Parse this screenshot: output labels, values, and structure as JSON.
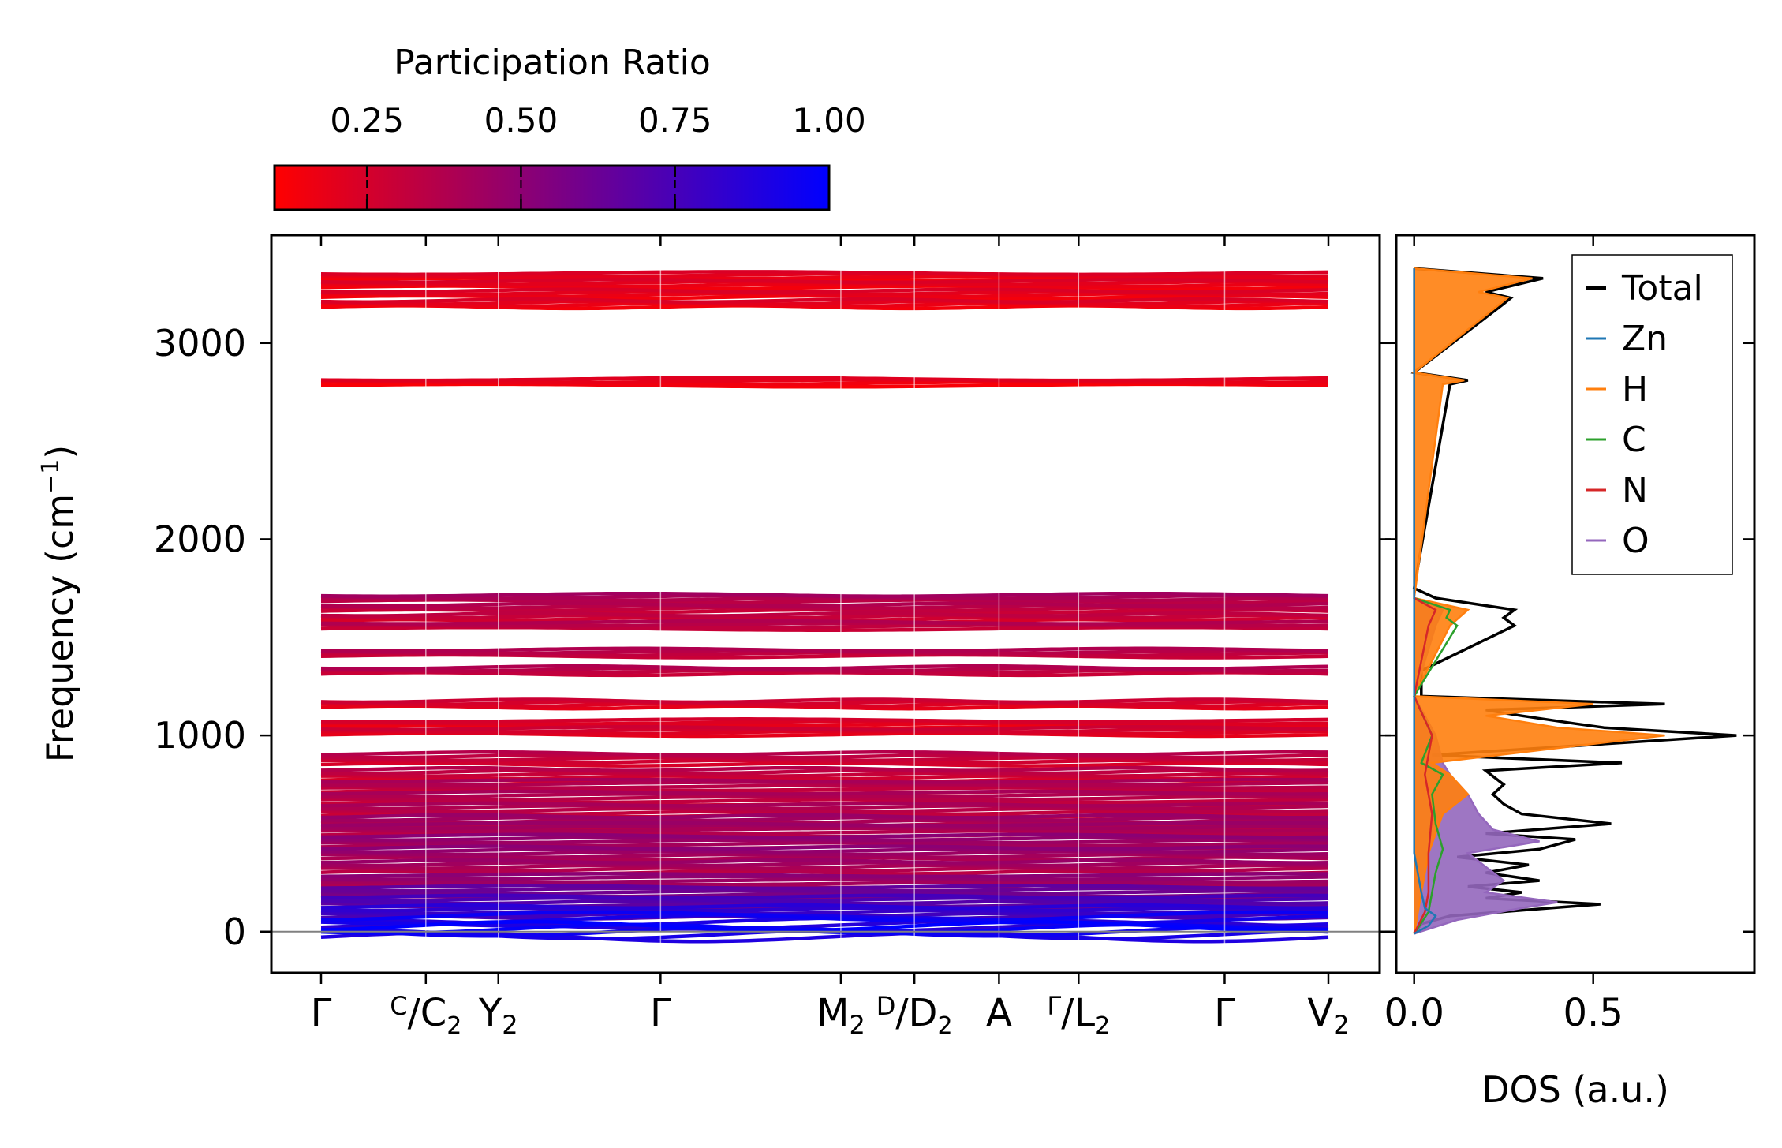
{
  "colorbar": {
    "label": "Participation Ratio",
    "range": [
      0.1,
      1.0
    ],
    "ticks": [
      "0.25",
      "0.50",
      "0.75",
      "1.00"
    ],
    "tick_values": [
      0.25,
      0.5,
      0.75,
      1.0
    ],
    "color_low": "#ff0000",
    "color_high": "#0000ff"
  },
  "chart_data": [
    {
      "type": "line",
      "name": "phonon-band-structure",
      "ylabel": "Frequency (cm",
      "ylabel_exp": "−1",
      "ylabel_end": ")",
      "ylim": [
        -210,
        3550
      ],
      "yticks": [
        "0",
        "1000",
        "2000",
        "3000"
      ],
      "ytick_values": [
        0,
        1000,
        2000,
        3000
      ],
      "xpath": [
        {
          "label": "Γ",
          "pos": 0.0
        },
        {
          "label": "C",
          "sub": "C",
          "sub2": "2",
          "split": true,
          "pos": 0.104
        },
        {
          "label": "Y",
          "sub": "2",
          "pos": 0.176
        },
        {
          "label": "Γ",
          "pos": 0.337
        },
        {
          "label": "M",
          "sub": "2",
          "pos": 0.516
        },
        {
          "label": "D",
          "sub": "D",
          "sub2": "2",
          "split": true,
          "pos": 0.589
        },
        {
          "label": "A",
          "pos": 0.673
        },
        {
          "label": "Γ",
          "sub": "L",
          "sub2": "2",
          "split": true,
          "pos": 0.752
        },
        {
          "label": "Γ",
          "pos": 0.897
        },
        {
          "label": "V",
          "sub": "2",
          "pos": 1.0
        }
      ],
      "band_groups": [
        {
          "center": 3340,
          "pr": 0.2
        },
        {
          "center": 3300,
          "pr": 0.2
        },
        {
          "center": 3250,
          "pr": 0.2
        },
        {
          "center": 3200,
          "pr": 0.2
        },
        {
          "center": 2800,
          "pr": 0.18
        },
        {
          "center": 1700,
          "pr": 0.4
        },
        {
          "center": 1650,
          "pr": 0.35
        },
        {
          "center": 1600,
          "pr": 0.3
        },
        {
          "center": 1560,
          "pr": 0.35
        },
        {
          "center": 1420,
          "pr": 0.35
        },
        {
          "center": 1330,
          "pr": 0.35
        },
        {
          "center": 1160,
          "pr": 0.25
        },
        {
          "center": 1060,
          "pr": 0.22
        },
        {
          "center": 1020,
          "pr": 0.25
        },
        {
          "center": 880,
          "pr": 0.3
        },
        {
          "center": 800,
          "pr": 0.3
        },
        {
          "center": 740,
          "pr": 0.35
        },
        {
          "center": 680,
          "pr": 0.35
        },
        {
          "center": 620,
          "pr": 0.35
        },
        {
          "center": 560,
          "pr": 0.4
        },
        {
          "center": 520,
          "pr": 0.4
        },
        {
          "center": 460,
          "pr": 0.45
        },
        {
          "center": 400,
          "pr": 0.45
        },
        {
          "center": 330,
          "pr": 0.4
        },
        {
          "center": 260,
          "pr": 0.45
        },
        {
          "center": 200,
          "pr": 0.6
        },
        {
          "center": 150,
          "pr": 0.7
        },
        {
          "center": 100,
          "pr": 0.8
        },
        {
          "center": 50,
          "pr": 0.9
        },
        {
          "center": 0,
          "pr": 0.95
        }
      ]
    },
    {
      "type": "line",
      "name": "phonon-dos",
      "xlabel": "DOS (a.u.)",
      "xlim": [
        -0.05,
        0.95
      ],
      "xticks": [
        "0.0",
        "0.5"
      ],
      "xtick_values": [
        0.0,
        0.5
      ],
      "legend_position": "top-right",
      "series": [
        {
          "name": "Total",
          "color": "#000000",
          "points": [
            [
              -10,
              0.0
            ],
            [
              40,
              0.02
            ],
            [
              80,
              0.1
            ],
            [
              120,
              0.38
            ],
            [
              140,
              0.52
            ],
            [
              170,
              0.2
            ],
            [
              200,
              0.3
            ],
            [
              230,
              0.15
            ],
            [
              260,
              0.35
            ],
            [
              300,
              0.2
            ],
            [
              340,
              0.32
            ],
            [
              380,
              0.12
            ],
            [
              420,
              0.35
            ],
            [
              470,
              0.45
            ],
            [
              500,
              0.2
            ],
            [
              550,
              0.55
            ],
            [
              600,
              0.3
            ],
            [
              650,
              0.25
            ],
            [
              700,
              0.22
            ],
            [
              750,
              0.25
            ],
            [
              820,
              0.2
            ],
            [
              860,
              0.58
            ],
            [
              900,
              0.05
            ],
            [
              1000,
              0.9
            ],
            [
              1040,
              0.53
            ],
            [
              1060,
              0.45
            ],
            [
              1100,
              0.3
            ],
            [
              1130,
              0.2
            ],
            [
              1160,
              0.7
            ],
            [
              1200,
              0.02
            ],
            [
              1330,
              0.02
            ],
            [
              1560,
              0.28
            ],
            [
              1600,
              0.25
            ],
            [
              1640,
              0.28
            ],
            [
              1700,
              0.06
            ],
            [
              1750,
              0.0
            ],
            [
              2790,
              0.1
            ],
            [
              2810,
              0.15
            ],
            [
              2850,
              0.0
            ],
            [
              3200,
              0.25
            ],
            [
              3230,
              0.27
            ],
            [
              3260,
              0.2
            ],
            [
              3330,
              0.36
            ],
            [
              3380,
              0.0
            ]
          ]
        },
        {
          "name": "Zn",
          "color": "#1f77b4",
          "points": [
            [
              -10,
              0.0
            ],
            [
              30,
              0.04
            ],
            [
              80,
              0.06
            ],
            [
              120,
              0.03
            ],
            [
              200,
              0.02
            ],
            [
              300,
              0.01
            ],
            [
              400,
              0.0
            ],
            [
              3380,
              0.0
            ]
          ]
        },
        {
          "name": "H",
          "color": "#ff7f0e",
          "points": [
            [
              -10,
              0.0
            ],
            [
              200,
              0.02
            ],
            [
              400,
              0.04
            ],
            [
              600,
              0.08
            ],
            [
              700,
              0.15
            ],
            [
              800,
              0.1
            ],
            [
              860,
              0.05
            ],
            [
              1000,
              0.7
            ],
            [
              1040,
              0.4
            ],
            [
              1100,
              0.2
            ],
            [
              1160,
              0.5
            ],
            [
              1200,
              0.0
            ],
            [
              1560,
              0.1
            ],
            [
              1640,
              0.15
            ],
            [
              1700,
              0.0
            ],
            [
              2790,
              0.08
            ],
            [
              2810,
              0.14
            ],
            [
              2850,
              0.0
            ],
            [
              3200,
              0.24
            ],
            [
              3230,
              0.26
            ],
            [
              3260,
              0.18
            ],
            [
              3330,
              0.33
            ],
            [
              3380,
              0.0
            ]
          ]
        },
        {
          "name": "C",
          "color": "#2ca02c",
          "points": [
            [
              -10,
              0.0
            ],
            [
              100,
              0.04
            ],
            [
              200,
              0.05
            ],
            [
              300,
              0.06
            ],
            [
              420,
              0.08
            ],
            [
              550,
              0.06
            ],
            [
              700,
              0.05
            ],
            [
              800,
              0.08
            ],
            [
              860,
              0.02
            ],
            [
              1000,
              0.05
            ],
            [
              1200,
              0.0
            ],
            [
              1560,
              0.12
            ],
            [
              1600,
              0.09
            ],
            [
              1640,
              0.1
            ],
            [
              1700,
              0.0
            ],
            [
              3380,
              0.0
            ]
          ]
        },
        {
          "name": "N",
          "color": "#d62728",
          "points": [
            [
              -10,
              0.0
            ],
            [
              100,
              0.03
            ],
            [
              200,
              0.04
            ],
            [
              400,
              0.04
            ],
            [
              600,
              0.05
            ],
            [
              800,
              0.03
            ],
            [
              1000,
              0.05
            ],
            [
              1200,
              0.0
            ],
            [
              1560,
              0.04
            ],
            [
              1640,
              0.06
            ],
            [
              1700,
              0.0
            ],
            [
              3380,
              0.0
            ]
          ]
        },
        {
          "name": "O",
          "color": "#9467bd",
          "points": [
            [
              -10,
              0.0
            ],
            [
              60,
              0.12
            ],
            [
              120,
              0.3
            ],
            [
              150,
              0.4
            ],
            [
              200,
              0.2
            ],
            [
              260,
              0.25
            ],
            [
              330,
              0.2
            ],
            [
              400,
              0.15
            ],
            [
              460,
              0.35
            ],
            [
              520,
              0.22
            ],
            [
              600,
              0.18
            ],
            [
              700,
              0.15
            ],
            [
              800,
              0.1
            ],
            [
              860,
              0.08
            ],
            [
              1000,
              0.06
            ],
            [
              1200,
              0.0
            ],
            [
              1560,
              0.06
            ],
            [
              1640,
              0.08
            ],
            [
              1700,
              0.0
            ],
            [
              3380,
              0.0
            ]
          ]
        }
      ]
    }
  ]
}
